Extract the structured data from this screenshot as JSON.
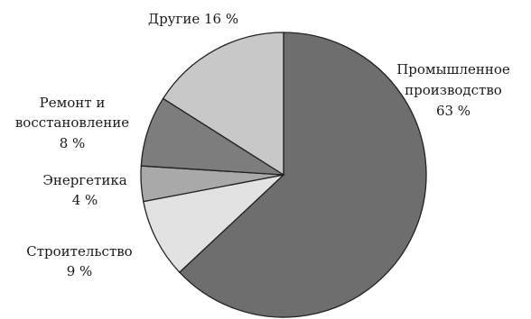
{
  "chart_data": {
    "type": "pie",
    "title": "",
    "unit": "%",
    "slices": [
      {
        "name": "Промышленное производство",
        "value": 63,
        "color": "#6e6e6e",
        "label_lines": [
          "Промышленное",
          "производство",
          "63 %"
        ]
      },
      {
        "name": "Строительство",
        "value": 9,
        "color": "#e2e2e2",
        "label_lines": [
          "Строительство",
          "9 %"
        ]
      },
      {
        "name": "Энергетика",
        "value": 4,
        "color": "#a9a9a9",
        "label_lines": [
          "Энергетика",
          "4 %"
        ]
      },
      {
        "name": "Ремонт и восстановление",
        "value": 8,
        "color": "#7d7d7d",
        "label_lines": [
          "Ремонт и",
          "восстановление",
          "8 %"
        ]
      },
      {
        "name": "Другие",
        "value": 16,
        "color": "#c8c8c8",
        "label_lines": [
          "Другие 16 %"
        ]
      }
    ],
    "start_angle_deg": -90,
    "direction": "clockwise",
    "legend": "none"
  }
}
